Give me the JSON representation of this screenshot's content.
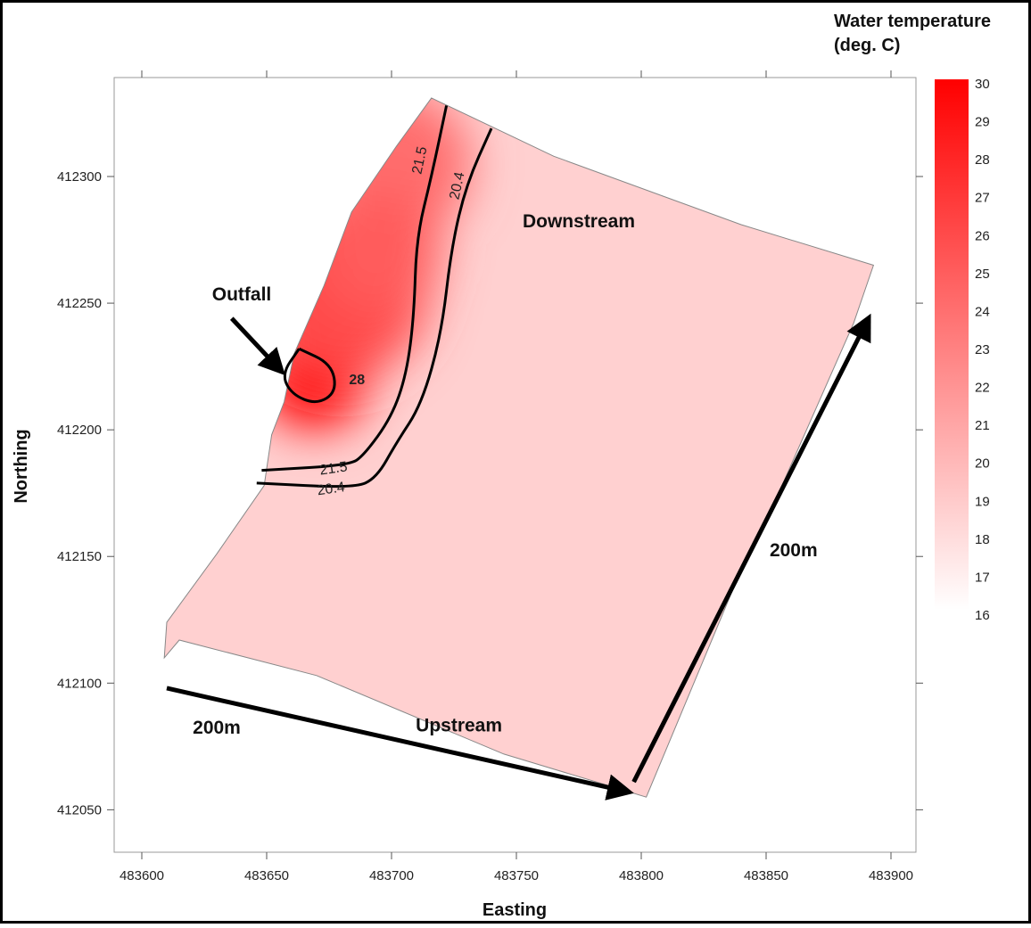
{
  "chart_data": {
    "type": "heatmap",
    "xlabel": "Easting",
    "ylabel": "Northing",
    "x_ticks": [
      483600,
      483650,
      483700,
      483750,
      483800,
      483850,
      483900
    ],
    "y_ticks": [
      412050,
      412100,
      412150,
      412200,
      412250,
      412300
    ],
    "xlim": [
      483600,
      483905
    ],
    "ylim": [
      412032,
      412338
    ],
    "colorbar": {
      "title": [
        "Water temperature",
        "(deg. C)"
      ],
      "min": 16,
      "max": 30,
      "ticks": [
        30,
        29,
        28,
        27,
        26,
        25,
        24,
        23,
        22,
        21,
        20,
        19,
        18,
        17,
        16
      ],
      "color_low": "#ffffff",
      "color_high": "#ff0000"
    },
    "domain_outline": [
      [
        483716,
        412331
      ],
      [
        483765,
        412308
      ],
      [
        483840,
        412281
      ],
      [
        483893,
        412265
      ],
      [
        483885,
        412242
      ],
      [
        483855,
        412175
      ],
      [
        483838,
        412140
      ],
      [
        483802,
        412055
      ],
      [
        483792,
        412058
      ],
      [
        483745,
        412072
      ],
      [
        483670,
        412103
      ],
      [
        483615,
        412117
      ],
      [
        483609,
        412110
      ],
      [
        483610,
        412124
      ],
      [
        483630,
        412151
      ],
      [
        483649,
        412178
      ],
      [
        483652,
        412198
      ],
      [
        483657,
        412211
      ],
      [
        483661,
        412230
      ],
      [
        483673,
        412257
      ],
      [
        483684,
        412286
      ],
      [
        483702,
        412312
      ]
    ],
    "field": [
      {
        "x": 483669,
        "y": 412222,
        "value": 30,
        "radius": 22
      },
      {
        "x": 483680,
        "y": 412255,
        "value": 26,
        "radius": 35
      },
      {
        "x": 483702,
        "y": 412305,
        "value": 24,
        "radius": 30
      },
      {
        "x": 483695,
        "y": 412270,
        "value": 25,
        "radius": 25
      }
    ],
    "background_value": 18.6,
    "contours": [
      {
        "value": 28,
        "label": "28",
        "label_at": [
          483683,
          412218
        ],
        "points": [
          [
            483663,
            412232
          ],
          [
            483676,
            412226
          ],
          [
            483678,
            412215
          ],
          [
            483670,
            412210
          ],
          [
            483660,
            412214
          ],
          [
            483656,
            412222
          ],
          [
            483663,
            412232
          ]
        ]
      },
      {
        "value": 21.5,
        "label": "21.5",
        "label_at": [
          483713,
          412306
        ],
        "points": [
          [
            483722,
            412328
          ],
          [
            483716,
            412300
          ],
          [
            483710,
            412276
          ],
          [
            483709,
            412245
          ],
          [
            483706,
            412222
          ],
          [
            483700,
            412205
          ],
          [
            483689,
            412190
          ],
          [
            483683,
            412186
          ],
          [
            483648,
            412184
          ]
        ],
        "label2": "21.5",
        "label2_at": [
          483677,
          412183
        ]
      },
      {
        "value": 20.4,
        "label": "20.4",
        "label_at": [
          483728,
          412296
        ],
        "points": [
          [
            483740,
            412319
          ],
          [
            483730,
            412297
          ],
          [
            483724,
            412272
          ],
          [
            483720,
            412238
          ],
          [
            483712,
            412210
          ],
          [
            483702,
            412195
          ],
          [
            483694,
            412181
          ],
          [
            483685,
            412177
          ],
          [
            483646,
            412179
          ]
        ],
        "label2": "20.4",
        "label2_at": [
          483676,
          412175
        ]
      }
    ],
    "annotations": [
      {
        "text": "Outfall",
        "at": [
          483640,
          412251
        ]
      },
      {
        "text": "Downstream",
        "at": [
          483775,
          412280
        ]
      },
      {
        "text": "Upstream",
        "at": [
          483727,
          412081
        ]
      },
      {
        "text": "200m",
        "at": [
          483630,
          412080
        ]
      },
      {
        "text": "200m",
        "at": [
          483861,
          412150
        ]
      }
    ],
    "arrows": [
      {
        "name": "outfall-arrow",
        "from": [
          483636,
          412244
        ],
        "to": [
          483656,
          412223
        ]
      },
      {
        "name": "upstream-200m-arrow",
        "from": [
          483610,
          412098
        ],
        "to": [
          483795,
          412057
        ]
      },
      {
        "name": "downstream-200m-arrow",
        "from": [
          483797,
          412061
        ],
        "to": [
          483891,
          412244
        ]
      }
    ]
  }
}
